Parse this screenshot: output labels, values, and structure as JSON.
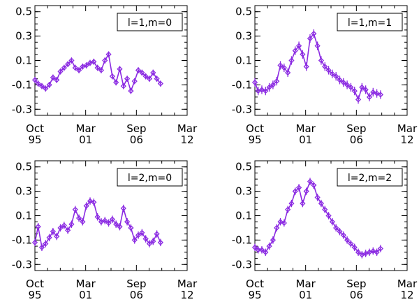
{
  "chart_data": [
    {
      "type": "line",
      "title": "l=1,m=0",
      "xlabel": "",
      "ylabel": "",
      "xlim": [
        1995.75,
        2012.17
      ],
      "ylim": [
        -0.35,
        0.55
      ],
      "yticks": [
        0.5,
        0.3,
        0.1,
        -0.1,
        -0.3
      ],
      "ytick_labels": [
        "0.5",
        "0.3",
        "0.1",
        "-0.1",
        "-0.3"
      ],
      "xtick_labels": [
        [
          "Oct",
          "95"
        ],
        [
          "Mar",
          "01"
        ],
        [
          "Sep",
          "06"
        ],
        [
          "Mar",
          "12"
        ]
      ],
      "color": "#8b2be2",
      "series": [
        {
          "name": "l=1,m=0",
          "x": [
            1995.75,
            1996.1,
            1996.5,
            1996.9,
            1997.3,
            1997.7,
            1998.1,
            1998.5,
            1998.9,
            1999.3,
            1999.7,
            2000.1,
            2000.5,
            2000.9,
            2001.3,
            2001.7,
            2002.1,
            2002.5,
            2002.9,
            2003.3,
            2003.7,
            2004.1,
            2004.5,
            2004.9,
            2005.3,
            2005.7,
            2006.1,
            2006.5,
            2006.9,
            2007.3,
            2007.7,
            2008.1,
            2008.5,
            2008.9,
            2009.3
          ],
          "y": [
            -0.06,
            -0.09,
            -0.11,
            -0.13,
            -0.1,
            -0.04,
            -0.06,
            0.01,
            0.04,
            0.07,
            0.1,
            0.04,
            0.02,
            0.05,
            0.06,
            0.08,
            0.09,
            0.04,
            0.02,
            0.1,
            0.15,
            -0.03,
            -0.08,
            0.03,
            -0.11,
            -0.05,
            -0.15,
            -0.07,
            0.02,
            0.0,
            -0.03,
            -0.05,
            0.0,
            -0.05,
            -0.09
          ],
          "err": 0.025
        }
      ]
    },
    {
      "type": "line",
      "title": "l=1,m=1",
      "xlabel": "",
      "ylabel": "",
      "xlim": [
        1995.75,
        2012.17
      ],
      "ylim": [
        -0.35,
        0.55
      ],
      "yticks": [
        0.5,
        0.3,
        0.1,
        -0.1,
        -0.3
      ],
      "ytick_labels": [
        "0.5",
        "0.3",
        "0.1",
        "-0.1",
        "-0.3"
      ],
      "xtick_labels": [
        [
          "Oct",
          "95"
        ],
        [
          "Mar",
          "01"
        ],
        [
          "Sep",
          "06"
        ],
        [
          "Mar",
          "12"
        ]
      ],
      "color": "#8b2be2",
      "series": [
        {
          "name": "l=1,m=1",
          "x": [
            1995.75,
            1996.1,
            1996.5,
            1996.9,
            1997.3,
            1997.7,
            1998.1,
            1998.5,
            1998.9,
            1999.3,
            1999.7,
            2000.1,
            2000.5,
            2000.9,
            2001.3,
            2001.7,
            2002.1,
            2002.5,
            2002.9,
            2003.3,
            2003.7,
            2004.1,
            2004.5,
            2004.9,
            2005.3,
            2005.7,
            2006.1,
            2006.5,
            2006.9,
            2007.3,
            2007.7,
            2008.1,
            2008.5,
            2008.9,
            2009.3
          ],
          "y": [
            -0.08,
            -0.15,
            -0.14,
            -0.15,
            -0.12,
            -0.1,
            -0.07,
            0.06,
            0.04,
            0.0,
            0.1,
            0.18,
            0.22,
            0.15,
            0.05,
            0.28,
            0.32,
            0.22,
            0.1,
            0.05,
            0.02,
            -0.01,
            -0.03,
            -0.06,
            -0.08,
            -0.1,
            -0.12,
            -0.15,
            -0.22,
            -0.12,
            -0.14,
            -0.2,
            -0.16,
            -0.17,
            -0.18
          ],
          "err": 0.035
        }
      ]
    },
    {
      "type": "line",
      "title": "l=2,m=0",
      "xlabel": "",
      "ylabel": "",
      "xlim": [
        1995.75,
        2012.17
      ],
      "ylim": [
        -0.35,
        0.55
      ],
      "yticks": [
        0.5,
        0.3,
        0.1,
        -0.1,
        -0.3
      ],
      "ytick_labels": [
        "0.5",
        "0.3",
        "0.1",
        "-0.1",
        "-0.3"
      ],
      "xtick_labels": [
        [
          "Oct",
          "95"
        ],
        [
          "Mar",
          "01"
        ],
        [
          "Sep",
          "06"
        ],
        [
          "Mar",
          "12"
        ]
      ],
      "color": "#8b2be2",
      "series": [
        {
          "name": "l=2,m=0",
          "x": [
            1995.75,
            1996.1,
            1996.5,
            1996.9,
            1997.3,
            1997.7,
            1998.1,
            1998.5,
            1998.9,
            1999.3,
            1999.7,
            2000.1,
            2000.5,
            2000.9,
            2001.3,
            2001.7,
            2002.1,
            2002.5,
            2002.9,
            2003.3,
            2003.7,
            2004.1,
            2004.5,
            2004.9,
            2005.3,
            2005.7,
            2006.1,
            2006.5,
            2006.9,
            2007.3,
            2007.7,
            2008.1,
            2008.5,
            2008.9,
            2009.3
          ],
          "y": [
            -0.12,
            0.01,
            -0.16,
            -0.13,
            -0.08,
            -0.03,
            -0.07,
            0.0,
            0.02,
            -0.02,
            0.03,
            0.15,
            0.08,
            0.05,
            0.18,
            0.22,
            0.21,
            0.09,
            0.05,
            0.06,
            0.04,
            0.07,
            0.03,
            0.01,
            0.16,
            0.05,
            0.0,
            -0.1,
            -0.06,
            -0.04,
            -0.09,
            -0.13,
            -0.11,
            -0.05,
            -0.12
          ],
          "err": 0.03
        }
      ]
    },
    {
      "type": "line",
      "title": "l=2,m=2",
      "xlabel": "",
      "ylabel": "",
      "xlim": [
        1995.75,
        2012.17
      ],
      "ylim": [
        -0.35,
        0.55
      ],
      "yticks": [
        0.5,
        0.3,
        0.1,
        -0.1,
        -0.3
      ],
      "ytick_labels": [
        "0.5",
        "0.3",
        "0.1",
        "-0.1",
        "-0.3"
      ],
      "xtick_labels": [
        [
          "Oct",
          "95"
        ],
        [
          "Mar",
          "01"
        ],
        [
          "Sep",
          "06"
        ],
        [
          "Mar",
          "12"
        ]
      ],
      "color": "#8b2be2",
      "series": [
        {
          "name": "l=2,m=2",
          "x": [
            1995.75,
            1996.1,
            1996.5,
            1996.9,
            1997.3,
            1997.7,
            1998.1,
            1998.5,
            1998.9,
            1999.3,
            1999.7,
            2000.1,
            2000.5,
            2000.9,
            2001.3,
            2001.7,
            2002.1,
            2002.5,
            2002.9,
            2003.3,
            2003.7,
            2004.1,
            2004.5,
            2004.9,
            2005.3,
            2005.7,
            2006.1,
            2006.5,
            2006.9,
            2007.3,
            2007.7,
            2008.1,
            2008.5,
            2008.9,
            2009.3
          ],
          "y": [
            -0.16,
            -0.18,
            -0.18,
            -0.2,
            -0.15,
            -0.1,
            0.0,
            0.05,
            0.04,
            0.15,
            0.2,
            0.3,
            0.33,
            0.2,
            0.3,
            0.38,
            0.35,
            0.25,
            0.2,
            0.15,
            0.1,
            0.05,
            0.0,
            -0.03,
            -0.06,
            -0.1,
            -0.13,
            -0.16,
            -0.2,
            -0.22,
            -0.21,
            -0.2,
            -0.19,
            -0.2,
            -0.17
          ],
          "err": 0.03
        }
      ]
    }
  ]
}
